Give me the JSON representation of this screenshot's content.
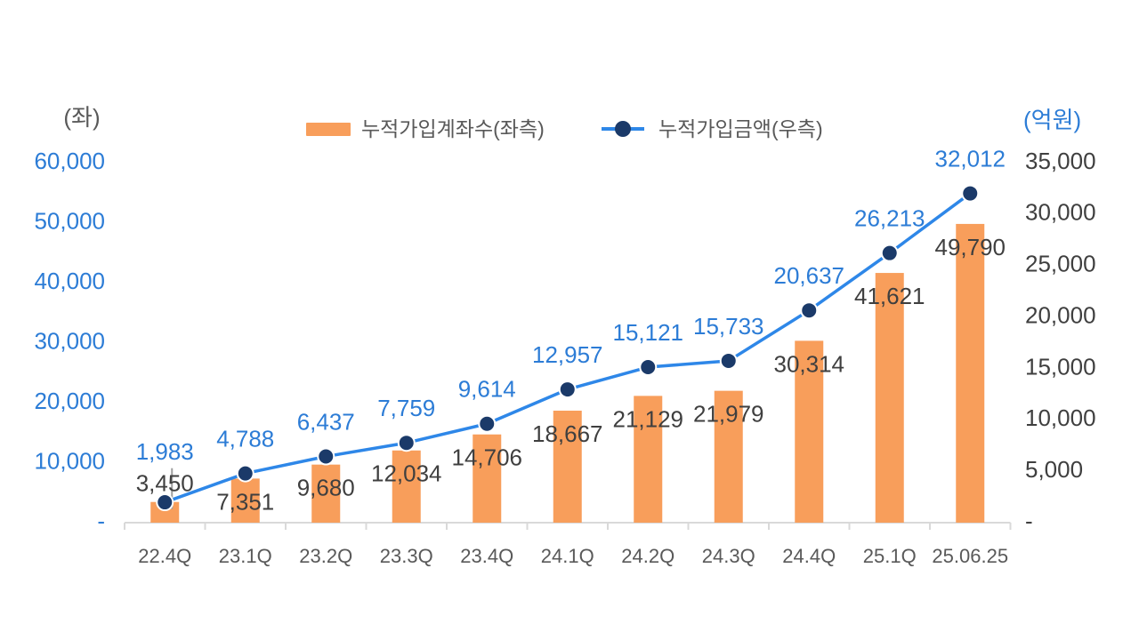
{
  "chart_data": {
    "type": "combo",
    "title": "",
    "categories": [
      "22.4Q",
      "23.1Q",
      "23.2Q",
      "23.3Q",
      "23.4Q",
      "24.1Q",
      "24.2Q",
      "24.3Q",
      "24.4Q",
      "25.1Q",
      "25.06.25"
    ],
    "series": [
      {
        "name": "누적가입계좌수(좌측)",
        "type": "bar",
        "axis": "left",
        "color": "#F89E5B",
        "label_color": "#3F3F3F",
        "values": [
          3450,
          7351,
          9680,
          12034,
          14706,
          18667,
          21129,
          21979,
          30314,
          41621,
          49790
        ]
      },
      {
        "name": "누적가입금액(우측)",
        "type": "line",
        "axis": "right",
        "color": "#2E87E8",
        "marker_color": "#1B3A69",
        "label_color": "#2C7CD6",
        "values": [
          1983,
          4788,
          6437,
          7759,
          9614,
          12957,
          15121,
          15733,
          20637,
          26213,
          32012
        ]
      }
    ],
    "left_axis": {
      "title": "(좌)",
      "min": 0,
      "max": 60000,
      "tick_step": 10000,
      "zero_label": "-",
      "tick_labels": [
        "60,000",
        "50,000",
        "40,000",
        "30,000",
        "20,000",
        "10,000",
        "-"
      ],
      "label_color": "#2C7CD6",
      "title_color": "#595959"
    },
    "right_axis": {
      "title": "(억원)",
      "min": 0,
      "max": 35000,
      "tick_step": 5000,
      "zero_label": "-",
      "tick_labels": [
        "35,000",
        "30,000",
        "25,000",
        "20,000",
        "15,000",
        "10,000",
        "5,000",
        "-"
      ],
      "label_color": "#3F3F3F",
      "title_color": "#2C7CD6"
    },
    "x_axis": {
      "label_color": "#595959",
      "line_color": "#D9D9D9"
    },
    "legend_position": "top",
    "grid": false,
    "data_labels": true,
    "leader_line_color": "#9E9E9E"
  }
}
